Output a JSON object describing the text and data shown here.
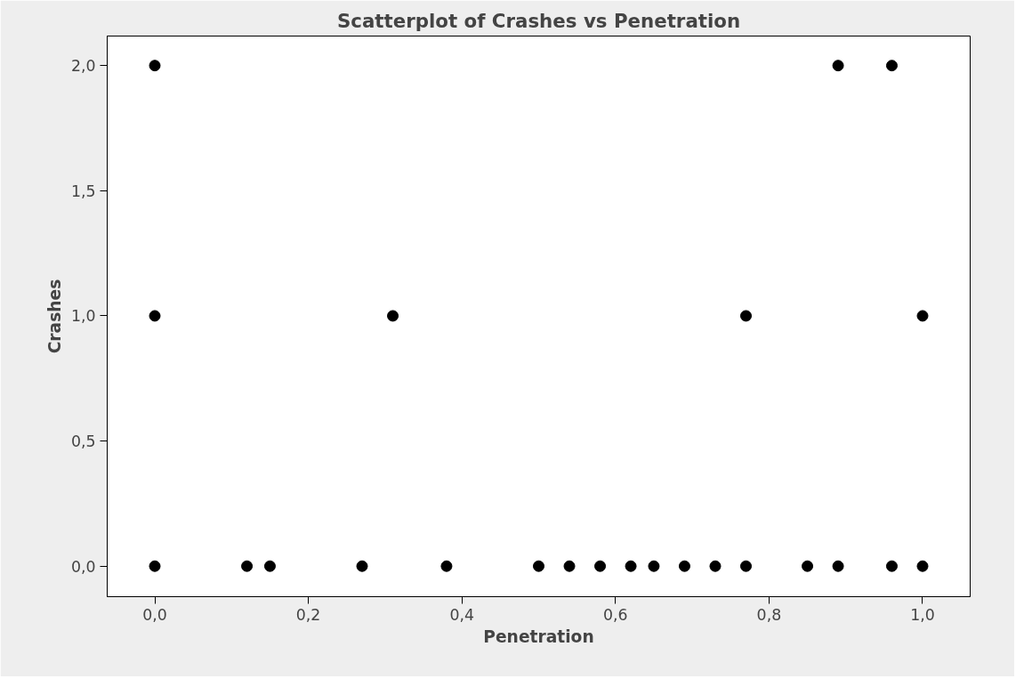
{
  "chart_data": {
    "type": "scatter",
    "title": "Scatterplot of Crashes vs Penetration",
    "xlabel": "Penetration",
    "ylabel": "Crashes",
    "x": [
      0.0,
      0.89,
      0.96,
      0.0,
      0.31,
      0.77,
      1.0,
      0.0,
      0.12,
      0.15,
      0.27,
      0.38,
      0.5,
      0.54,
      0.58,
      0.62,
      0.65,
      0.69,
      0.73,
      0.77,
      0.85,
      0.89,
      0.96,
      1.0
    ],
    "values": [
      2,
      2,
      2,
      1,
      1,
      1,
      1,
      0,
      0,
      0,
      0,
      0,
      0,
      0,
      0,
      0,
      0,
      0,
      0,
      0,
      0,
      0,
      0,
      0
    ],
    "color": "#000000",
    "marker": "circle",
    "xlim": [
      -0.062,
      1.062
    ],
    "ylim": [
      -0.122,
      2.118
    ],
    "xticks": [
      {
        "value": 0.0,
        "label": "0,0"
      },
      {
        "value": 0.2,
        "label": "0,2"
      },
      {
        "value": 0.4,
        "label": "0,4"
      },
      {
        "value": 0.6,
        "label": "0,6"
      },
      {
        "value": 0.8,
        "label": "0,8"
      },
      {
        "value": 1.0,
        "label": "1,0"
      }
    ],
    "yticks": [
      {
        "value": 0.0,
        "label": "0,0"
      },
      {
        "value": 0.5,
        "label": "0,5"
      },
      {
        "value": 1.0,
        "label": "1,0"
      },
      {
        "value": 1.5,
        "label": "1,5"
      },
      {
        "value": 2.0,
        "label": "2,0"
      }
    ],
    "grid": false
  }
}
